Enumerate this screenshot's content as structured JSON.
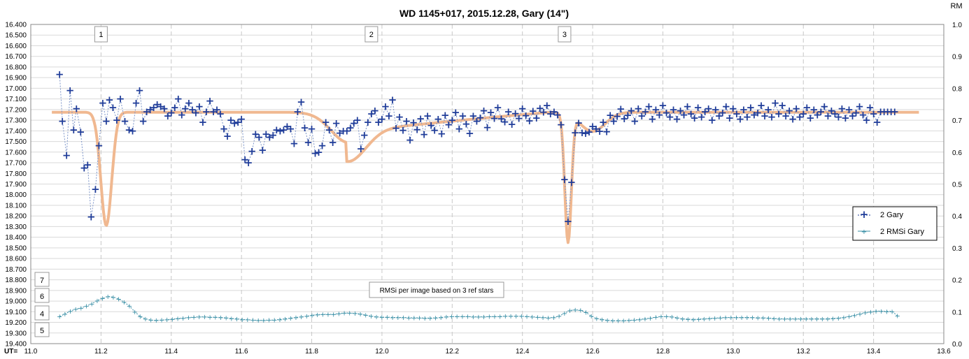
{
  "chart_data": {
    "type": "scatter",
    "title": "WD 1145+017, 2015.12.28,  Gary (14\")",
    "xlabel": "UT=",
    "ylabel_right": "RM",
    "xlim": [
      11.0,
      13.6
    ],
    "ylim_left": [
      16.4,
      19.4
    ],
    "ylim_right": [
      0.0,
      1.0
    ],
    "y_inverted_left": true,
    "x_ticks": [
      "11.0",
      "11.2",
      "11.4",
      "11.6",
      "11.8",
      "12.0",
      "12.2",
      "12.4",
      "12.6",
      "12.8",
      "13.0",
      "13.2",
      "13.4",
      "13.6"
    ],
    "y_ticks_left": [
      "16.400",
      "16.500",
      "16.600",
      "16.700",
      "16.800",
      "16.900",
      "17.000",
      "17.100",
      "17.200",
      "17.300",
      "17.400",
      "17.500",
      "17.600",
      "17.700",
      "17.800",
      "17.900",
      "18.000",
      "18.100",
      "18.200",
      "18.300",
      "18.400",
      "18.500",
      "18.600",
      "18.700",
      "18.800",
      "18.900",
      "19.000",
      "19.100",
      "19.200",
      "19.300",
      "19.400"
    ],
    "y_ticks_right": [
      "0.0",
      "0.1",
      "0.2",
      "0.3",
      "0.4",
      "0.5",
      "0.6",
      "0.7",
      "0.8",
      "0.9",
      "1.0"
    ],
    "grid": true,
    "legend_position": "right",
    "legend": [
      "2 Gary",
      "2 RMSi Gary"
    ],
    "annotations": {
      "dips": [
        "1",
        "2",
        "3"
      ],
      "rms_note": "RMSi per image based on 3 ref stars",
      "rms_scale_labels": [
        "7",
        "6",
        "4",
        "5"
      ]
    },
    "series": [
      {
        "name": "2 Gary",
        "color": "#1f3c99",
        "marker": "plus",
        "points": [
          [
            11.082,
            16.87
          ],
          [
            11.09,
            17.31
          ],
          [
            11.102,
            17.63
          ],
          [
            11.112,
            17.02
          ],
          [
            11.122,
            17.39
          ],
          [
            11.13,
            17.19
          ],
          [
            11.142,
            17.41
          ],
          [
            11.152,
            17.75
          ],
          [
            11.162,
            17.72
          ],
          [
            11.172,
            18.21
          ],
          [
            11.184,
            17.95
          ],
          [
            11.194,
            17.54
          ],
          [
            11.205,
            17.14
          ],
          [
            11.215,
            17.31
          ],
          [
            11.224,
            17.11
          ],
          [
            11.234,
            17.18
          ],
          [
            11.245,
            17.3
          ],
          [
            11.255,
            17.1
          ],
          [
            11.268,
            17.31
          ],
          [
            11.28,
            17.39
          ],
          [
            11.29,
            17.4
          ],
          [
            11.3,
            17.14
          ],
          [
            11.31,
            17.02
          ],
          [
            11.32,
            17.31
          ],
          [
            11.33,
            17.22
          ],
          [
            11.34,
            17.2
          ],
          [
            11.35,
            17.18
          ],
          [
            11.36,
            17.15
          ],
          [
            11.37,
            17.17
          ],
          [
            11.38,
            17.19
          ],
          [
            11.39,
            17.26
          ],
          [
            11.4,
            17.23
          ],
          [
            11.41,
            17.18
          ],
          [
            11.42,
            17.1
          ],
          [
            11.43,
            17.25
          ],
          [
            11.44,
            17.19
          ],
          [
            11.45,
            17.14
          ],
          [
            11.46,
            17.2
          ],
          [
            11.47,
            17.23
          ],
          [
            11.48,
            17.17
          ],
          [
            11.49,
            17.32
          ],
          [
            11.5,
            17.22
          ],
          [
            11.51,
            17.12
          ],
          [
            11.52,
            17.22
          ],
          [
            11.53,
            17.2
          ],
          [
            11.54,
            17.24
          ],
          [
            11.55,
            17.38
          ],
          [
            11.56,
            17.45
          ],
          [
            11.57,
            17.3
          ],
          [
            11.58,
            17.33
          ],
          [
            11.59,
            17.32
          ],
          [
            11.6,
            17.29
          ],
          [
            11.61,
            17.67
          ],
          [
            11.62,
            17.7
          ],
          [
            11.63,
            17.59
          ],
          [
            11.64,
            17.43
          ],
          [
            11.65,
            17.46
          ],
          [
            11.66,
            17.58
          ],
          [
            11.67,
            17.43
          ],
          [
            11.68,
            17.46
          ],
          [
            11.69,
            17.44
          ],
          [
            11.7,
            17.39
          ],
          [
            11.71,
            17.4
          ],
          [
            11.72,
            17.39
          ],
          [
            11.73,
            17.36
          ],
          [
            11.74,
            17.38
          ],
          [
            11.75,
            17.52
          ],
          [
            11.76,
            17.22
          ],
          [
            11.77,
            17.13
          ],
          [
            11.78,
            17.37
          ],
          [
            11.79,
            17.51
          ],
          [
            11.8,
            17.38
          ],
          [
            11.81,
            17.61
          ],
          [
            11.82,
            17.6
          ],
          [
            11.83,
            17.54
          ],
          [
            11.84,
            17.32
          ],
          [
            11.85,
            17.39
          ],
          [
            11.86,
            17.51
          ],
          [
            11.87,
            17.33
          ],
          [
            11.88,
            17.42
          ],
          [
            11.89,
            17.4
          ],
          [
            11.9,
            17.4
          ],
          [
            11.91,
            17.37
          ],
          [
            11.92,
            17.33
          ],
          [
            11.93,
            17.3
          ],
          [
            11.94,
            17.57
          ],
          [
            11.95,
            17.44
          ],
          [
            11.96,
            17.32
          ],
          [
            11.97,
            17.24
          ],
          [
            11.98,
            17.21
          ],
          [
            11.99,
            17.32
          ],
          [
            12.0,
            17.29
          ],
          [
            12.01,
            17.17
          ],
          [
            12.02,
            17.26
          ],
          [
            12.03,
            17.11
          ]
        ]
      },
      {
        "name": "2 RMSi Gary",
        "color": "#3a8fa6",
        "marker": "plus-small",
        "values": [
          0.085,
          0.093,
          0.102,
          0.108,
          0.112,
          0.118,
          0.125,
          0.135,
          0.142,
          0.148,
          0.146,
          0.14,
          0.13,
          0.118,
          0.1,
          0.085,
          0.078,
          0.074,
          0.073,
          0.074,
          0.075,
          0.077,
          0.079,
          0.08,
          0.082,
          0.083,
          0.084,
          0.084,
          0.083,
          0.083,
          0.082,
          0.081,
          0.079,
          0.078,
          0.076,
          0.075,
          0.074,
          0.073,
          0.073,
          0.074,
          0.074,
          0.076,
          0.078,
          0.08,
          0.082,
          0.084,
          0.086,
          0.089,
          0.091,
          0.092,
          0.092,
          0.092,
          0.094,
          0.096,
          0.096,
          0.095,
          0.093,
          0.09,
          0.086,
          0.084,
          0.083,
          0.083,
          0.082,
          0.082,
          0.082,
          0.081,
          0.081,
          0.081,
          0.08,
          0.08,
          0.081,
          0.082,
          0.084,
          0.085,
          0.085,
          0.085,
          0.085,
          0.084,
          0.084,
          0.084,
          0.085,
          0.085,
          0.085,
          0.086,
          0.086,
          0.086,
          0.086,
          0.085,
          0.084,
          0.083,
          0.082,
          0.081,
          0.082,
          0.086,
          0.095,
          0.104,
          0.106,
          0.105,
          0.098,
          0.086,
          0.079,
          0.076,
          0.073,
          0.072,
          0.072,
          0.072,
          0.073,
          0.074,
          0.076,
          0.078,
          0.08,
          0.083,
          0.085,
          0.085,
          0.084,
          0.081,
          0.078,
          0.077,
          0.076,
          0.077,
          0.078,
          0.079,
          0.08,
          0.081,
          0.082,
          0.082,
          0.082,
          0.082,
          0.082,
          0.082,
          0.081,
          0.081,
          0.08,
          0.079,
          0.078,
          0.078,
          0.078,
          0.078,
          0.078,
          0.078,
          0.078,
          0.078,
          0.078,
          0.078,
          0.079,
          0.08,
          0.082,
          0.085,
          0.089,
          0.093,
          0.097,
          0.1,
          0.102,
          0.102,
          0.101,
          0.101,
          0.087
        ],
        "x_start": 11.082,
        "x_end": 13.468
      }
    ]
  }
}
